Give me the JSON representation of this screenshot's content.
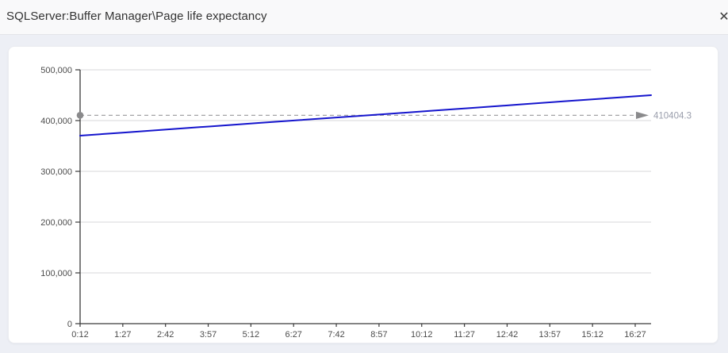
{
  "window": {
    "title": "SQLServer:Buffer Manager\\Page life expectancy",
    "close_icon": "✕"
  },
  "chart_data": {
    "type": "line",
    "title": "SQLServer:Buffer Manager\\Page life expectancy",
    "xlabel": "",
    "ylabel": "",
    "categories": [
      "0:12",
      "1:27",
      "2:42",
      "3:57",
      "5:12",
      "6:27",
      "7:42",
      "8:57",
      "10:12",
      "11:27",
      "12:42",
      "13:57",
      "15:12",
      "16:27"
    ],
    "series": [
      {
        "name": "SQLServer:Buffer Manager\\Page life expectancy",
        "color": "#1515cd",
        "values": [
          370300,
          376400,
          382600,
          388700,
          394800,
          401000,
          407100,
          413200,
          419400,
          425500,
          431600,
          437800,
          443900,
          450000
        ]
      }
    ],
    "ylim": [
      0,
      500000
    ],
    "ytick_step": 100000,
    "ytick_labels": [
      "0",
      "100,000",
      "200,000",
      "300,000",
      "400,000",
      "500,000"
    ],
    "grid": true,
    "legend_position": "none",
    "annotation": {
      "type": "reference-line-arrow",
      "value": 410404.3,
      "label": "410404.3",
      "label_color": "#999dab",
      "line_color": "#a2a2a6",
      "marker_color": "#8a8a8c"
    }
  },
  "colors": {
    "page_bg": "#edeff5",
    "header_bg": "#f9f9fa",
    "card_bg": "#ffffff",
    "axis": "#3a3a3a",
    "grid": "#d7d7da",
    "tick_label": "#4c4c4c",
    "series_blue": "#1515cd"
  }
}
